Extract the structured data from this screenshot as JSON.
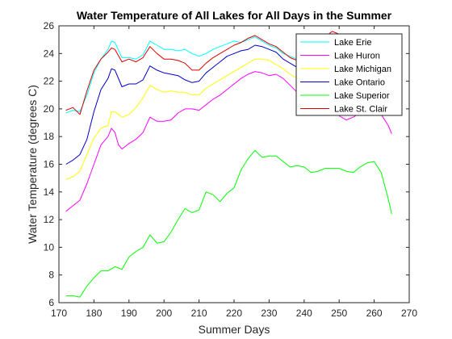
{
  "chart_data": {
    "type": "line",
    "title": "Water Temperature of All Lakes for All Days in the Summer",
    "xlabel": "Summer Days",
    "ylabel": "Water Temperature (degrees C)",
    "xlim": [
      170,
      270
    ],
    "ylim": [
      6,
      26
    ],
    "xticks": [
      170,
      180,
      190,
      200,
      210,
      220,
      230,
      240,
      250,
      260,
      270
    ],
    "yticks": [
      6,
      8,
      10,
      12,
      14,
      16,
      18,
      20,
      22,
      24,
      26
    ],
    "grid": false,
    "legend_position": "top-right",
    "series": [
      {
        "name": "Lake Erie",
        "color": "#00ffff",
        "points": [
          [
            172,
            19.7
          ],
          [
            174,
            19.9
          ],
          [
            176,
            19.8
          ],
          [
            178,
            21.0
          ],
          [
            180,
            22.6
          ],
          [
            182,
            23.6
          ],
          [
            184,
            24.3
          ],
          [
            185,
            24.9
          ],
          [
            186,
            24.8
          ],
          [
            188,
            23.7
          ],
          [
            190,
            23.7
          ],
          [
            192,
            23.6
          ],
          [
            194,
            23.9
          ],
          [
            196,
            24.9
          ],
          [
            198,
            24.6
          ],
          [
            200,
            24.3
          ],
          [
            202,
            24.3
          ],
          [
            204,
            24.2
          ],
          [
            206,
            24.3
          ],
          [
            208,
            24.0
          ],
          [
            210,
            23.8
          ],
          [
            212,
            24.0
          ],
          [
            214,
            24.3
          ],
          [
            216,
            24.5
          ],
          [
            218,
            24.7
          ],
          [
            220,
            24.9
          ],
          [
            222,
            24.8
          ],
          [
            224,
            25.0
          ],
          [
            226,
            25.2
          ],
          [
            228,
            24.9
          ],
          [
            230,
            24.6
          ],
          [
            232,
            24.4
          ],
          [
            234,
            24.0
          ],
          [
            236,
            23.8
          ],
          [
            238,
            23.6
          ],
          [
            240,
            23.6
          ],
          [
            242,
            23.8
          ],
          [
            244,
            24.2
          ],
          [
            246,
            24.5
          ],
          [
            248,
            24.5
          ],
          [
            250,
            24.0
          ]
        ]
      },
      {
        "name": "Lake Huron",
        "color": "#ff00ff",
        "points": [
          [
            172,
            12.6
          ],
          [
            174,
            13.0
          ],
          [
            176,
            13.4
          ],
          [
            178,
            14.6
          ],
          [
            180,
            16.0
          ],
          [
            182,
            17.4
          ],
          [
            184,
            18.0
          ],
          [
            185,
            18.6
          ],
          [
            186,
            18.3
          ],
          [
            187,
            17.4
          ],
          [
            188,
            17.1
          ],
          [
            190,
            17.5
          ],
          [
            192,
            17.8
          ],
          [
            194,
            18.3
          ],
          [
            196,
            19.4
          ],
          [
            198,
            19.1
          ],
          [
            200,
            19.1
          ],
          [
            202,
            19.2
          ],
          [
            204,
            19.7
          ],
          [
            206,
            20.0
          ],
          [
            208,
            20.0
          ],
          [
            210,
            19.9
          ],
          [
            212,
            20.3
          ],
          [
            214,
            20.7
          ],
          [
            216,
            21.0
          ],
          [
            218,
            21.4
          ],
          [
            220,
            21.8
          ],
          [
            222,
            22.2
          ],
          [
            224,
            22.5
          ],
          [
            226,
            22.7
          ],
          [
            228,
            22.6
          ],
          [
            230,
            22.4
          ],
          [
            232,
            22.5
          ],
          [
            234,
            22.2
          ],
          [
            236,
            21.7
          ],
          [
            238,
            21.2
          ],
          [
            240,
            21.0
          ],
          [
            242,
            20.8
          ],
          [
            244,
            20.5
          ],
          [
            246,
            20.3
          ],
          [
            248,
            20.0
          ],
          [
            250,
            19.5
          ],
          [
            252,
            19.2
          ],
          [
            254,
            19.4
          ],
          [
            256,
            19.7
          ],
          [
            258,
            19.8
          ],
          [
            260,
            19.9
          ],
          [
            262,
            19.6
          ],
          [
            264,
            18.8
          ],
          [
            265,
            18.2
          ]
        ]
      },
      {
        "name": "Lake Michigan",
        "color": "#ffff00",
        "points": [
          [
            172,
            14.9
          ],
          [
            174,
            15.1
          ],
          [
            176,
            15.5
          ],
          [
            178,
            16.7
          ],
          [
            180,
            17.9
          ],
          [
            182,
            18.6
          ],
          [
            184,
            18.8
          ],
          [
            185,
            19.8
          ],
          [
            186,
            19.8
          ],
          [
            188,
            19.4
          ],
          [
            190,
            19.6
          ],
          [
            192,
            20.1
          ],
          [
            194,
            20.8
          ],
          [
            196,
            21.7
          ],
          [
            198,
            21.4
          ],
          [
            200,
            21.2
          ],
          [
            202,
            21.3
          ],
          [
            204,
            21.2
          ],
          [
            206,
            21.2
          ],
          [
            208,
            21.0
          ],
          [
            210,
            21.0
          ],
          [
            212,
            21.5
          ],
          [
            214,
            21.8
          ],
          [
            216,
            22.1
          ],
          [
            218,
            22.4
          ],
          [
            220,
            22.7
          ],
          [
            222,
            23.0
          ],
          [
            224,
            23.3
          ],
          [
            226,
            23.6
          ],
          [
            228,
            23.6
          ],
          [
            230,
            23.5
          ],
          [
            232,
            23.2
          ],
          [
            234,
            22.9
          ],
          [
            236,
            22.5
          ],
          [
            238,
            22.2
          ],
          [
            240,
            22.1
          ],
          [
            242,
            22.0
          ],
          [
            244,
            22.2
          ],
          [
            246,
            22.5
          ],
          [
            248,
            22.7
          ],
          [
            250,
            22.5
          ]
        ]
      },
      {
        "name": "Lake Ontario",
        "color": "#0000cd",
        "points": [
          [
            172,
            16.0
          ],
          [
            174,
            16.3
          ],
          [
            176,
            16.7
          ],
          [
            178,
            17.8
          ],
          [
            180,
            19.8
          ],
          [
            182,
            21.4
          ],
          [
            184,
            22.2
          ],
          [
            185,
            22.9
          ],
          [
            186,
            22.8
          ],
          [
            188,
            21.6
          ],
          [
            190,
            21.8
          ],
          [
            192,
            21.8
          ],
          [
            194,
            22.1
          ],
          [
            196,
            23.1
          ],
          [
            198,
            22.8
          ],
          [
            200,
            22.6
          ],
          [
            202,
            22.5
          ],
          [
            204,
            22.4
          ],
          [
            206,
            22.1
          ],
          [
            208,
            21.9
          ],
          [
            210,
            22.0
          ],
          [
            212,
            22.6
          ],
          [
            214,
            23.0
          ],
          [
            216,
            23.4
          ],
          [
            218,
            23.8
          ],
          [
            220,
            24.0
          ],
          [
            222,
            24.2
          ],
          [
            224,
            24.3
          ],
          [
            226,
            24.6
          ],
          [
            228,
            24.5
          ],
          [
            230,
            24.3
          ],
          [
            232,
            24.1
          ],
          [
            234,
            23.6
          ],
          [
            236,
            23.3
          ],
          [
            238,
            23.0
          ],
          [
            240,
            23.0
          ],
          [
            242,
            23.2
          ],
          [
            244,
            23.5
          ],
          [
            246,
            23.8
          ],
          [
            248,
            24.0
          ],
          [
            250,
            23.8
          ]
        ]
      },
      {
        "name": "Lake Superior",
        "color": "#00ff00",
        "points": [
          [
            172,
            6.5
          ],
          [
            174,
            6.5
          ],
          [
            176,
            6.4
          ],
          [
            178,
            7.2
          ],
          [
            180,
            7.8
          ],
          [
            182,
            8.3
          ],
          [
            184,
            8.3
          ],
          [
            186,
            8.6
          ],
          [
            188,
            8.4
          ],
          [
            190,
            9.3
          ],
          [
            192,
            9.7
          ],
          [
            194,
            10.0
          ],
          [
            196,
            10.9
          ],
          [
            198,
            10.3
          ],
          [
            200,
            10.4
          ],
          [
            202,
            11.1
          ],
          [
            204,
            12.0
          ],
          [
            206,
            12.8
          ],
          [
            208,
            12.5
          ],
          [
            210,
            12.7
          ],
          [
            212,
            14.0
          ],
          [
            214,
            13.8
          ],
          [
            216,
            13.3
          ],
          [
            218,
            13.9
          ],
          [
            220,
            14.3
          ],
          [
            222,
            15.6
          ],
          [
            224,
            16.4
          ],
          [
            226,
            17.0
          ],
          [
            228,
            16.5
          ],
          [
            230,
            16.6
          ],
          [
            232,
            16.6
          ],
          [
            234,
            16.2
          ],
          [
            236,
            15.8
          ],
          [
            238,
            15.9
          ],
          [
            240,
            15.8
          ],
          [
            242,
            15.4
          ],
          [
            244,
            15.5
          ],
          [
            246,
            15.7
          ],
          [
            248,
            15.7
          ],
          [
            250,
            15.7
          ],
          [
            252,
            15.5
          ],
          [
            254,
            15.4
          ],
          [
            256,
            15.8
          ],
          [
            258,
            16.1
          ],
          [
            260,
            16.2
          ],
          [
            262,
            15.4
          ],
          [
            264,
            13.5
          ],
          [
            265,
            12.4
          ]
        ]
      },
      {
        "name": "Lake St. Clair",
        "color": "#e00000",
        "points": [
          [
            172,
            19.9
          ],
          [
            174,
            20.1
          ],
          [
            176,
            19.6
          ],
          [
            178,
            21.3
          ],
          [
            180,
            22.8
          ],
          [
            182,
            23.6
          ],
          [
            184,
            24.1
          ],
          [
            185,
            24.4
          ],
          [
            186,
            24.3
          ],
          [
            188,
            23.4
          ],
          [
            190,
            23.6
          ],
          [
            192,
            23.4
          ],
          [
            194,
            23.7
          ],
          [
            196,
            24.5
          ],
          [
            198,
            24.0
          ],
          [
            200,
            23.6
          ],
          [
            202,
            23.6
          ],
          [
            204,
            23.5
          ],
          [
            206,
            23.3
          ],
          [
            208,
            22.8
          ],
          [
            210,
            22.8
          ],
          [
            212,
            23.3
          ],
          [
            214,
            23.7
          ],
          [
            216,
            24.0
          ],
          [
            218,
            24.3
          ],
          [
            220,
            24.6
          ],
          [
            222,
            24.8
          ],
          [
            224,
            25.1
          ],
          [
            226,
            25.3
          ],
          [
            228,
            25.0
          ],
          [
            230,
            24.7
          ],
          [
            232,
            24.5
          ],
          [
            234,
            24.1
          ],
          [
            236,
            23.7
          ],
          [
            238,
            23.5
          ],
          [
            240,
            23.6
          ],
          [
            242,
            24.0
          ],
          [
            244,
            24.6
          ],
          [
            246,
            25.2
          ],
          [
            248,
            25.6
          ],
          [
            250,
            25.4
          ]
        ]
      }
    ]
  }
}
